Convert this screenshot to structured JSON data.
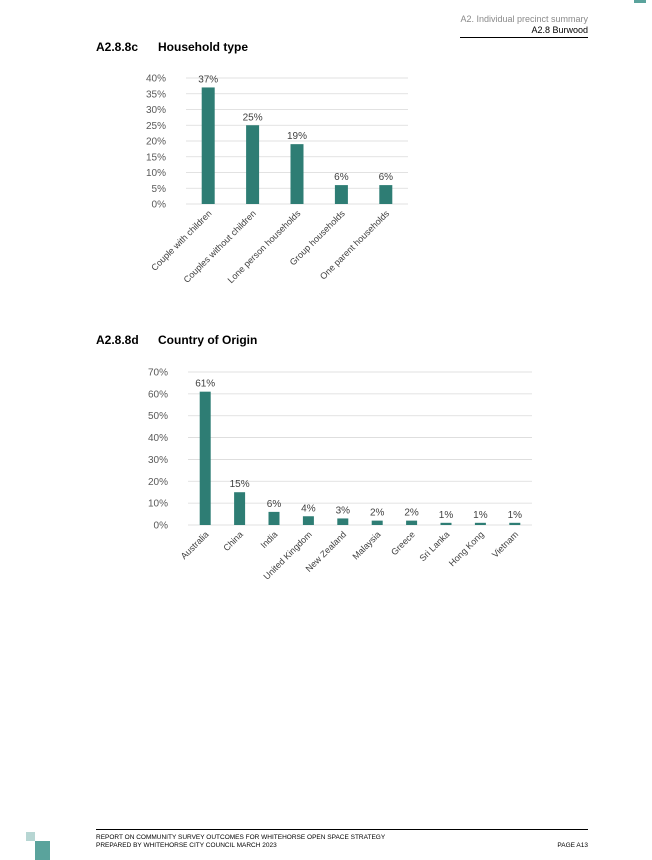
{
  "header": {
    "line1": "A2. Individual precinct summary",
    "line2": "A2.8 Burwood"
  },
  "sections": [
    {
      "number": "A2.8.8c",
      "title": "Household type"
    },
    {
      "number": "A2.8.8d",
      "title": "Country of Origin"
    }
  ],
  "colors": {
    "bar": "#2e7d74",
    "accent": "#5aa39c"
  },
  "chart_data": [
    {
      "type": "bar",
      "title": "Household type",
      "categories": [
        "Couple with children",
        "Couples without children",
        "Lone person households",
        "Group households",
        "One parent households"
      ],
      "values": [
        37,
        25,
        19,
        6,
        6
      ],
      "data_labels": [
        "37%",
        "25%",
        "19%",
        "6%",
        "6%"
      ],
      "yticks": [
        "0%",
        "5%",
        "10%",
        "15%",
        "20%",
        "25%",
        "30%",
        "35%",
        "40%"
      ],
      "ylim": [
        0,
        40
      ],
      "grid": true,
      "xlabel": "",
      "ylabel": ""
    },
    {
      "type": "bar",
      "title": "Country of Origin",
      "categories": [
        "Australia",
        "China",
        "India",
        "United Kingdom",
        "New Zealand",
        "Malaysia",
        "Greece",
        "Sri Lanka",
        "Hong Kong",
        "Vietnam"
      ],
      "values": [
        61,
        15,
        6,
        4,
        3,
        2,
        2,
        1,
        1,
        1
      ],
      "data_labels": [
        "61%",
        "15%",
        "6%",
        "4%",
        "3%",
        "2%",
        "2%",
        "1%",
        "1%",
        "1%"
      ],
      "yticks": [
        "0%",
        "10%",
        "20%",
        "30%",
        "40%",
        "50%",
        "60%",
        "70%"
      ],
      "ylim": [
        0,
        70
      ],
      "grid": true,
      "xlabel": "",
      "ylabel": ""
    }
  ],
  "footer": {
    "line1": "REPORT ON COMMUNITY SURVEY OUTCOMES FOR WHITEHORSE OPEN SPACE STRATEGY",
    "line2": "PREPARED BY WHITEHORSE CITY COUNCIL MARCH 2023",
    "page": "PAGE A13"
  }
}
